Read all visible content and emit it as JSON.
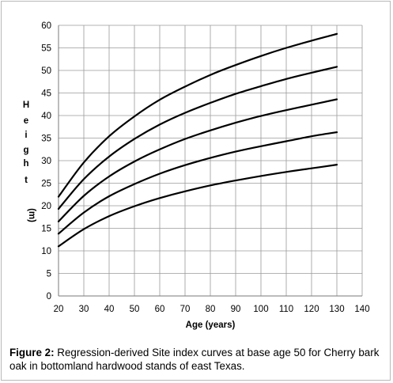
{
  "caption": {
    "label": "Figure 2:",
    "text": " Regression-derived Site index curves at base age 50 for Cherry bark oak in bottomland hardwood stands of east Texas."
  },
  "chart_data": {
    "type": "line",
    "title": "",
    "xlabel": "Age (years)",
    "ylabel": "Height (m)",
    "xlim": [
      20,
      140
    ],
    "ylim": [
      0,
      60
    ],
    "xticks": [
      20,
      30,
      40,
      50,
      60,
      70,
      80,
      90,
      100,
      110,
      120,
      130,
      140
    ],
    "yticks": [
      0,
      5,
      10,
      15,
      20,
      25,
      30,
      35,
      40,
      45,
      50,
      55,
      60
    ],
    "grid": true,
    "legend": "none",
    "line_color": "#000000",
    "x": [
      20,
      30,
      40,
      50,
      60,
      70,
      80,
      90,
      100,
      110,
      120,
      130
    ],
    "series": [
      {
        "values": [
          22.0,
          29.6,
          35.4,
          39.8,
          43.5,
          46.4,
          49.0,
          51.2,
          53.2,
          55.0,
          56.6,
          58.1
        ]
      },
      {
        "values": [
          19.3,
          25.9,
          30.9,
          34.8,
          38.0,
          40.6,
          42.8,
          44.8,
          46.5,
          48.1,
          49.5,
          50.8
        ]
      },
      {
        "values": [
          16.5,
          22.2,
          26.5,
          29.8,
          32.5,
          34.8,
          36.7,
          38.4,
          39.9,
          41.2,
          42.4,
          43.6
        ]
      },
      {
        "values": [
          13.8,
          18.5,
          22.1,
          24.8,
          27.1,
          29.0,
          30.6,
          32.0,
          33.2,
          34.3,
          35.4,
          36.3
        ]
      },
      {
        "values": [
          11.0,
          14.8,
          17.7,
          19.9,
          21.7,
          23.2,
          24.5,
          25.6,
          26.6,
          27.5,
          28.3,
          29.1
        ]
      }
    ]
  }
}
